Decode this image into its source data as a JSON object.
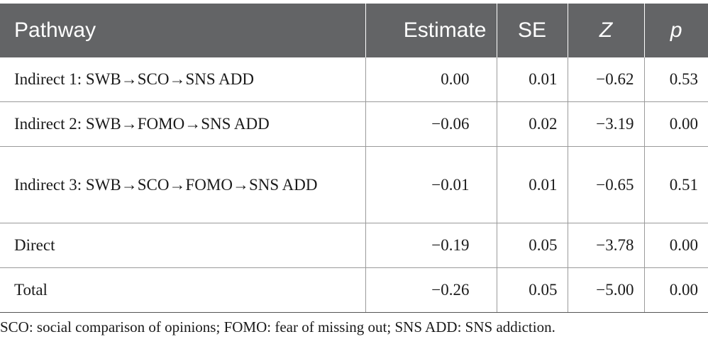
{
  "table": {
    "headers": {
      "pathway": "Pathway",
      "estimate": "Estimate",
      "se": "SE",
      "z": "Z",
      "p": "p"
    },
    "rows": [
      {
        "pathway": "Indirect 1: SWB→SCO→SNS ADD",
        "estimate": "0.00",
        "se": "0.01",
        "z": "−0.62",
        "p": "0.53"
      },
      {
        "pathway": "Indirect 2: SWB→FOMO→SNS ADD",
        "estimate": "−0.06",
        "se": "0.02",
        "z": "−3.19",
        "p": "0.00"
      },
      {
        "pathway": "Indirect 3: SWB→SCO→FOMO→SNS ADD",
        "estimate": "−0.01",
        "se": "0.01",
        "z": "−0.65",
        "p": "0.51"
      },
      {
        "pathway": "Direct",
        "estimate": "−0.19",
        "se": "0.05",
        "z": "−3.78",
        "p": "0.00"
      },
      {
        "pathway": "Total",
        "estimate": "−0.26",
        "se": "0.05",
        "z": "−5.00",
        "p": "0.00"
      }
    ]
  },
  "footnote": "SCO: social comparison of opinions; FOMO: fear of missing out; SNS ADD: SNS addiction."
}
